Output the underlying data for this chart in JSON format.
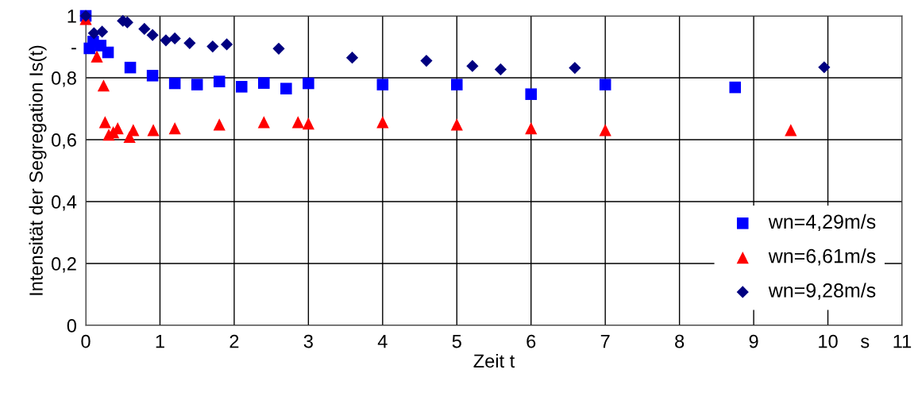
{
  "chart_data": {
    "type": "scatter",
    "xlabel": "Zeit t",
    "ylabel": "Intensität der Segregation Is(t)",
    "xlim": [
      0,
      11
    ],
    "ylim": [
      0,
      1
    ],
    "xticks": [
      0,
      1,
      2,
      3,
      4,
      5,
      6,
      7,
      8,
      9,
      10,
      {
        "value": 10.5,
        "label": "s"
      },
      11
    ],
    "yticks": [
      0,
      {
        "value": 0.2,
        "label": "0,2"
      },
      {
        "value": 0.4,
        "label": "0,4"
      },
      {
        "value": 0.6,
        "label": "0,6"
      },
      {
        "value": 0.8,
        "label": "0,8"
      },
      {
        "value": 0.9,
        "label": "-"
      },
      1
    ],
    "grid": true,
    "legend": "bottom right",
    "series": [
      {
        "name": "wn=4,29m/s",
        "color": "#0000ff",
        "marker": "square",
        "x": [
          0,
          0.05,
          0.1,
          0.2,
          0.3,
          0.6,
          0.9,
          1.2,
          1.5,
          1.8,
          2.1,
          2.4,
          2.7,
          3.0,
          4,
          5,
          6,
          7,
          8.75
        ],
        "values": [
          1.0,
          0.895,
          0.917,
          0.904,
          0.882,
          0.833,
          0.807,
          0.782,
          0.778,
          0.788,
          0.771,
          0.783,
          0.765,
          0.782,
          0.778,
          0.778,
          0.747,
          0.778,
          0.769
        ]
      },
      {
        "name": "wn=6,61m/s",
        "color": "#ff0000",
        "marker": "triangle",
        "x": [
          0,
          0.15,
          0.24,
          0.26,
          0.31,
          0.37,
          0.43,
          0.59,
          0.64,
          0.91,
          1.2,
          1.8,
          2.4,
          2.86,
          3.0,
          4,
          5,
          6,
          7,
          9.5
        ],
        "values": [
          0.99,
          0.869,
          0.775,
          0.657,
          0.616,
          0.624,
          0.637,
          0.609,
          0.631,
          0.631,
          0.637,
          0.649,
          0.657,
          0.657,
          0.652,
          0.657,
          0.649,
          0.637,
          0.631,
          0.631
        ]
      },
      {
        "name": "wn=9,28m/s",
        "color": "#000080",
        "marker": "diamond",
        "x": [
          0,
          0.11,
          0.22,
          0.5,
          0.56,
          0.79,
          0.9,
          1.08,
          1.2,
          1.4,
          1.71,
          1.9,
          2.6,
          3.59,
          4.59,
          5.21,
          5.59,
          6.59,
          9.95
        ],
        "values": [
          1.0,
          0.944,
          0.949,
          0.984,
          0.979,
          0.958,
          0.938,
          0.921,
          0.927,
          0.912,
          0.901,
          0.908,
          0.894,
          0.865,
          0.855,
          0.838,
          0.827,
          0.832,
          0.834
        ]
      }
    ]
  }
}
